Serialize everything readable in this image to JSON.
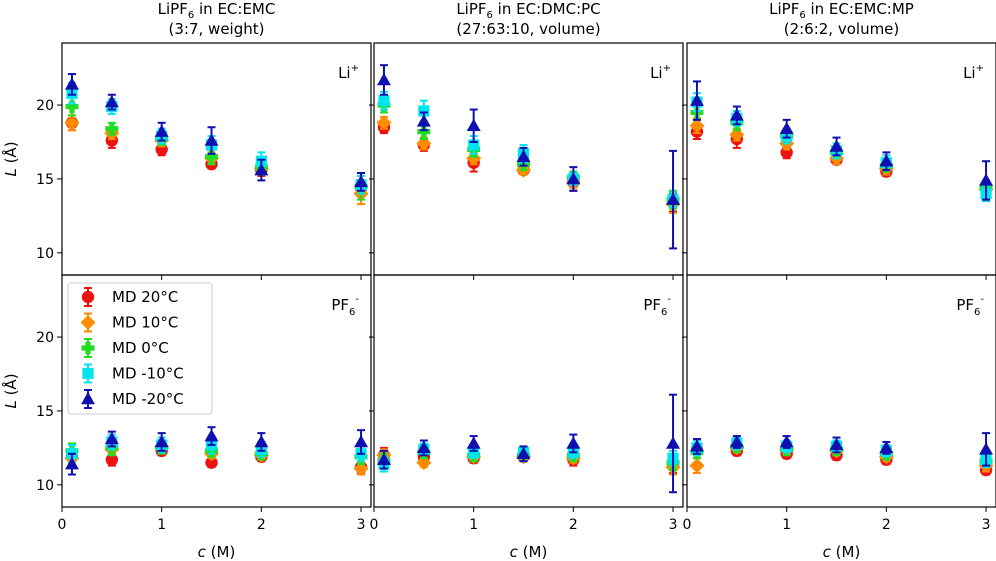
{
  "chart_data": {
    "type": "scatter",
    "xlabel": "c (M)",
    "ylabel": "L (Å)",
    "xlim": [
      0,
      3.1
    ],
    "ylim": [
      8.5,
      24.2
    ],
    "xticks": [
      0,
      1,
      2,
      3
    ],
    "yticks": [
      10,
      15,
      20
    ],
    "grid": false,
    "legend": {
      "placement": "top-left of lower-left panel"
    },
    "columns": [
      {
        "title_line1_pre": "LiPF",
        "title_sub": "6",
        "title_line1_post": " in EC:EMC",
        "title_line2": "(3:7, weight)"
      },
      {
        "title_line1_pre": "LiPF",
        "title_sub": "6",
        "title_line1_post": " in EC:DMC:PC",
        "title_line2": "(27:63:10, volume)"
      },
      {
        "title_line1_pre": "LiPF",
        "title_sub": "6",
        "title_line1_post": " in EC:EMC:MP",
        "title_line2": "(2:6:2, volume)"
      }
    ],
    "rows": [
      {
        "ion_base": "Li",
        "ion_sup": "+",
        "ion_sub": ""
      },
      {
        "ion_base": "PF",
        "ion_sup": "-",
        "ion_sub": "6"
      }
    ],
    "series": [
      {
        "name": "MD 20°C",
        "color": "#ee1111",
        "marker": "circle",
        "offset": 0.0
      },
      {
        "name": "MD 10°C",
        "color": "#ff8c00",
        "marker": "diamond",
        "offset": 0.0
      },
      {
        "name": "MD 0°C",
        "color": "#22dd22",
        "marker": "plus",
        "offset": 0.0
      },
      {
        "name": "MD -10°C",
        "color": "#00e5ee",
        "marker": "square",
        "offset": 0.0
      },
      {
        "name": "MD -20°C",
        "color": "#1010b0",
        "marker": "triangle",
        "offset": 0.0
      }
    ],
    "x": [
      0.1,
      0.5,
      1.0,
      1.5,
      2.0,
      3.0
    ],
    "panels": [
      {
        "row": 0,
        "col": 0,
        "data": [
          [
            [
              18.8,
              0.5
            ],
            [
              17.6,
              0.5
            ],
            [
              17.0,
              0.4
            ],
            [
              16.0,
              0.3
            ],
            [
              15.6,
              0.4
            ],
            [
              14.4,
              0.5
            ]
          ],
          [
            [
              18.8,
              0.5
            ],
            [
              18.1,
              0.4
            ],
            [
              17.6,
              0.4
            ],
            [
              16.4,
              0.4
            ],
            [
              15.7,
              0.4
            ],
            [
              14.0,
              0.7
            ]
          ],
          [
            [
              19.9,
              0.6
            ],
            [
              18.4,
              0.4
            ],
            [
              17.7,
              0.4
            ],
            [
              16.5,
              0.5
            ],
            [
              15.8,
              0.5
            ],
            [
              14.5,
              0.9
            ]
          ],
          [
            [
              20.8,
              0.7
            ],
            [
              19.9,
              0.5
            ],
            [
              17.9,
              0.5
            ],
            [
              17.3,
              0.6
            ],
            [
              16.2,
              0.6
            ],
            [
              14.6,
              0.6
            ]
          ],
          [
            [
              21.4,
              0.7
            ],
            [
              20.2,
              0.5
            ],
            [
              18.2,
              0.6
            ],
            [
              17.6,
              0.9
            ],
            [
              15.6,
              0.7
            ],
            [
              14.8,
              0.6
            ]
          ]
        ]
      },
      {
        "row": 0,
        "col": 1,
        "data": [
          [
            [
              18.5,
              0.4
            ],
            [
              17.3,
              0.4
            ],
            [
              16.1,
              0.6
            ],
            [
              15.6,
              0.3
            ],
            [
              14.8,
              0.6
            ],
            [
              13.4,
              0.6
            ]
          ],
          [
            [
              18.8,
              0.4
            ],
            [
              17.4,
              0.4
            ],
            [
              16.4,
              0.4
            ],
            [
              15.6,
              0.3
            ],
            [
              14.8,
              0.4
            ],
            [
              13.3,
              0.6
            ]
          ],
          [
            [
              20.0,
              0.5
            ],
            [
              18.2,
              0.5
            ],
            [
              17.0,
              0.5
            ],
            [
              16.0,
              0.4
            ],
            [
              15.1,
              0.4
            ],
            [
              13.6,
              0.6
            ]
          ],
          [
            [
              20.3,
              0.6
            ],
            [
              19.6,
              0.7
            ],
            [
              17.3,
              0.6
            ],
            [
              16.7,
              0.6
            ],
            [
              15.0,
              0.4
            ],
            [
              13.6,
              0.5
            ]
          ],
          [
            [
              21.7,
              1.0
            ],
            [
              18.9,
              0.6
            ],
            [
              18.6,
              1.1
            ],
            [
              16.5,
              0.6
            ],
            [
              15.0,
              0.8
            ],
            [
              13.6,
              3.3
            ]
          ]
        ]
      },
      {
        "row": 0,
        "col": 2,
        "data": [
          [
            [
              18.2,
              0.5
            ],
            [
              17.7,
              0.6
            ],
            [
              16.8,
              0.4
            ],
            [
              16.3,
              0.3
            ],
            [
              15.5,
              0.3
            ],
            [
              14.4,
              0.4
            ]
          ],
          [
            [
              18.6,
              0.5
            ],
            [
              18.0,
              0.4
            ],
            [
              17.4,
              0.4
            ],
            [
              16.4,
              0.4
            ],
            [
              15.7,
              0.4
            ],
            [
              14.3,
              0.5
            ]
          ],
          [
            [
              19.5,
              0.5
            ],
            [
              18.8,
              0.5
            ],
            [
              17.9,
              0.5
            ],
            [
              16.8,
              0.4
            ],
            [
              15.9,
              0.4
            ],
            [
              14.4,
              0.5
            ]
          ],
          [
            [
              20.2,
              0.6
            ],
            [
              19.1,
              0.5
            ],
            [
              17.9,
              0.5
            ],
            [
              16.9,
              0.5
            ],
            [
              16.1,
              0.5
            ],
            [
              14.0,
              0.5
            ]
          ],
          [
            [
              20.3,
              1.3
            ],
            [
              19.3,
              0.6
            ],
            [
              18.4,
              0.6
            ],
            [
              17.2,
              0.6
            ],
            [
              16.2,
              0.6
            ],
            [
              14.9,
              1.3
            ]
          ]
        ]
      },
      {
        "row": 1,
        "col": 0,
        "data": [
          [
            [
              11.9,
              0.5
            ],
            [
              11.7,
              0.4
            ],
            [
              12.3,
              0.3
            ],
            [
              11.5,
              0.3
            ],
            [
              11.9,
              0.3
            ],
            [
              11.2,
              0.4
            ]
          ],
          [
            [
              11.8,
              0.4
            ],
            [
              12.4,
              0.3
            ],
            [
              12.6,
              0.3
            ],
            [
              12.1,
              0.3
            ],
            [
              12.0,
              0.3
            ],
            [
              11.1,
              0.4
            ]
          ],
          [
            [
              12.3,
              0.5
            ],
            [
              12.5,
              0.5
            ],
            [
              12.5,
              0.4
            ],
            [
              12.3,
              0.4
            ],
            [
              12.1,
              0.4
            ],
            [
              11.9,
              0.5
            ]
          ],
          [
            [
              12.1,
              0.6
            ],
            [
              12.9,
              0.5
            ],
            [
              12.7,
              0.5
            ],
            [
              12.7,
              0.6
            ],
            [
              12.4,
              0.5
            ],
            [
              12.1,
              0.5
            ]
          ],
          [
            [
              11.4,
              0.7
            ],
            [
              13.1,
              0.5
            ],
            [
              12.9,
              0.6
            ],
            [
              13.3,
              0.6
            ],
            [
              12.9,
              0.6
            ],
            [
              12.9,
              0.8
            ]
          ]
        ]
      },
      {
        "row": 1,
        "col": 1,
        "data": [
          [
            [
              12.0,
              0.5
            ],
            [
              11.9,
              0.3
            ],
            [
              11.8,
              0.3
            ],
            [
              11.9,
              0.3
            ],
            [
              11.7,
              0.4
            ],
            [
              11.3,
              0.5
            ]
          ],
          [
            [
              12.0,
              0.4
            ],
            [
              11.5,
              0.3
            ],
            [
              11.9,
              0.3
            ],
            [
              11.9,
              0.3
            ],
            [
              11.8,
              0.3
            ],
            [
              11.2,
              0.5
            ]
          ],
          [
            [
              11.6,
              0.5
            ],
            [
              12.2,
              0.4
            ],
            [
              12.0,
              0.4
            ],
            [
              12.0,
              0.4
            ],
            [
              12.0,
              0.4
            ],
            [
              11.5,
              0.5
            ]
          ],
          [
            [
              11.4,
              0.5
            ],
            [
              12.4,
              0.4
            ],
            [
              12.2,
              0.4
            ],
            [
              12.2,
              0.4
            ],
            [
              12.2,
              0.4
            ],
            [
              11.8,
              0.5
            ]
          ],
          [
            [
              11.7,
              0.6
            ],
            [
              12.5,
              0.5
            ],
            [
              12.8,
              0.5
            ],
            [
              12.1,
              0.5
            ],
            [
              12.8,
              0.6
            ],
            [
              12.8,
              3.3
            ]
          ]
        ]
      },
      {
        "row": 1,
        "col": 2,
        "data": [
          [
            [
              12.4,
              0.4
            ],
            [
              12.3,
              0.3
            ],
            [
              12.1,
              0.3
            ],
            [
              12.0,
              0.3
            ],
            [
              11.7,
              0.3
            ],
            [
              11.0,
              0.3
            ]
          ],
          [
            [
              11.3,
              0.5
            ],
            [
              12.5,
              0.3
            ],
            [
              12.4,
              0.3
            ],
            [
              12.3,
              0.3
            ],
            [
              11.9,
              0.3
            ],
            [
              11.3,
              0.4
            ]
          ],
          [
            [
              12.2,
              0.4
            ],
            [
              12.6,
              0.4
            ],
            [
              12.4,
              0.4
            ],
            [
              12.4,
              0.4
            ],
            [
              12.1,
              0.4
            ],
            [
              11.6,
              0.4
            ]
          ],
          [
            [
              12.5,
              0.5
            ],
            [
              12.8,
              0.4
            ],
            [
              12.6,
              0.4
            ],
            [
              12.6,
              0.4
            ],
            [
              12.3,
              0.4
            ],
            [
              11.7,
              0.5
            ]
          ],
          [
            [
              12.6,
              0.5
            ],
            [
              12.9,
              0.4
            ],
            [
              12.9,
              0.4
            ],
            [
              12.7,
              0.5
            ],
            [
              12.5,
              0.4
            ],
            [
              12.4,
              1.1
            ]
          ]
        ]
      }
    ]
  }
}
